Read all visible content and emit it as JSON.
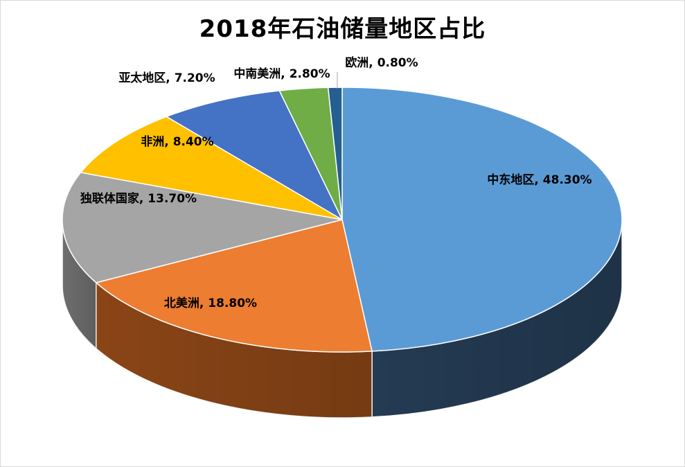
{
  "chart_data": {
    "type": "pie",
    "title": "2018年石油储量地区占比",
    "slices": [
      {
        "label": "中东地区",
        "value": 48.3,
        "display": "48.30%",
        "color": "#5b9bd5",
        "side": "#243b53"
      },
      {
        "label": "北美洲",
        "value": 18.8,
        "display": "18.80%",
        "color": "#ed7d31",
        "side": "#8a4516"
      },
      {
        "label": "独联体国家",
        "value": 13.7,
        "display": "13.70%",
        "color": "#a5a5a5",
        "side": "#6e6e6e"
      },
      {
        "label": "非洲",
        "value": 8.4,
        "display": "8.40%",
        "color": "#ffc000",
        "side": "#a37a00"
      },
      {
        "label": "亚太地区",
        "value": 7.2,
        "display": "7.20%",
        "color": "#4472c4",
        "side": "#2a4680"
      },
      {
        "label": "中南美洲",
        "value": 2.8,
        "display": "2.80%",
        "color": "#70ad47",
        "side": "#4a7530"
      },
      {
        "label": "欧洲",
        "value": 0.8,
        "display": "0.80%",
        "color": "#255e91",
        "side": "#173b5b"
      }
    ],
    "style": "3d-pie",
    "legend": "none"
  }
}
